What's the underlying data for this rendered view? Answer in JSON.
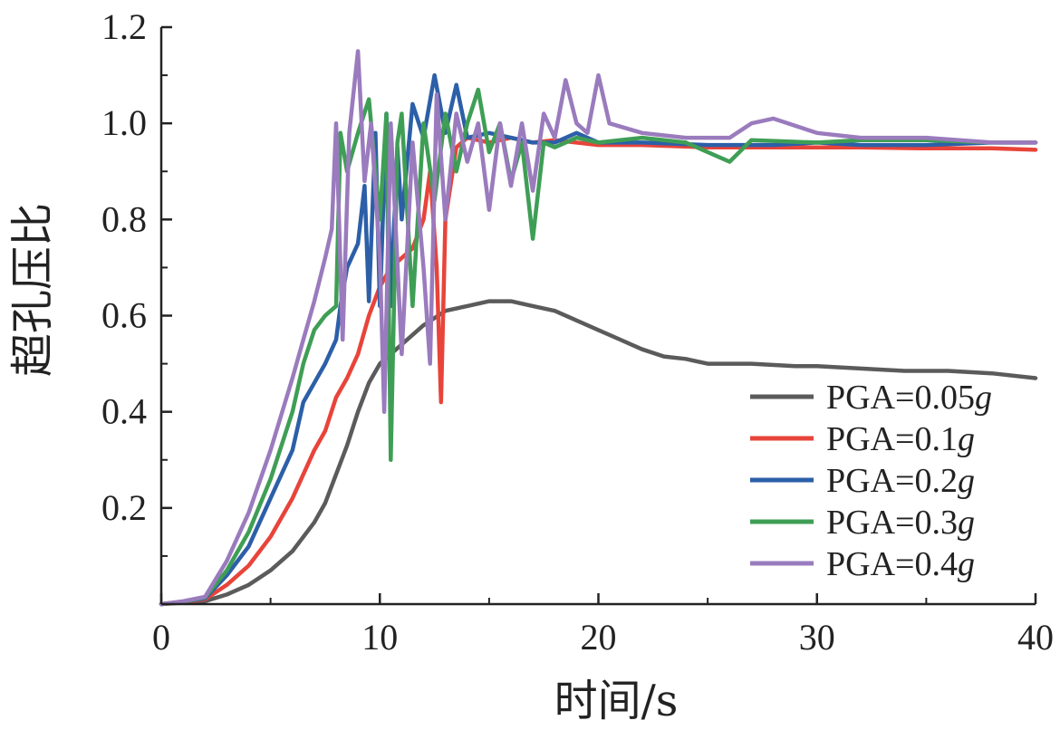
{
  "chart_data": {
    "type": "line",
    "title": "",
    "xlabel": "时间/s",
    "ylabel": "超孔压比",
    "xlim": [
      0,
      40
    ],
    "ylim": [
      0,
      1.2
    ],
    "xticks": [
      0,
      10,
      20,
      30,
      40
    ],
    "xtick_labels": [
      "0",
      "10",
      "20",
      "30",
      "40"
    ],
    "yticks": [
      0.2,
      0.4,
      0.6,
      0.8,
      1.0,
      1.2
    ],
    "ytick_labels": [
      "0.2",
      "0.4",
      "0.6",
      "0.8",
      "1.0",
      "1.2"
    ],
    "legend_position": "bottom-right",
    "series": [
      {
        "name": "PGA=0.05",
        "unit": "g",
        "color": "#5b5b5b",
        "points": [
          [
            0,
            0
          ],
          [
            1,
            0.003
          ],
          [
            2,
            0.006
          ],
          [
            3,
            0.02
          ],
          [
            4,
            0.04
          ],
          [
            5,
            0.07
          ],
          [
            6,
            0.11
          ],
          [
            7,
            0.17
          ],
          [
            7.5,
            0.21
          ],
          [
            8,
            0.27
          ],
          [
            8.5,
            0.33
          ],
          [
            9,
            0.4
          ],
          [
            9.5,
            0.46
          ],
          [
            10,
            0.5
          ],
          [
            11,
            0.54
          ],
          [
            12,
            0.58
          ],
          [
            13,
            0.61
          ],
          [
            14,
            0.62
          ],
          [
            15,
            0.63
          ],
          [
            16,
            0.63
          ],
          [
            17,
            0.62
          ],
          [
            18,
            0.61
          ],
          [
            19,
            0.59
          ],
          [
            20,
            0.57
          ],
          [
            21,
            0.55
          ],
          [
            22,
            0.53
          ],
          [
            23,
            0.515
          ],
          [
            24,
            0.51
          ],
          [
            25,
            0.5
          ],
          [
            27,
            0.5
          ],
          [
            29,
            0.495
          ],
          [
            30,
            0.495
          ],
          [
            32,
            0.49
          ],
          [
            34,
            0.485
          ],
          [
            36,
            0.485
          ],
          [
            38,
            0.48
          ],
          [
            40,
            0.47
          ]
        ]
      },
      {
        "name": "PGA=0.1",
        "unit": "g",
        "color": "#e8443a",
        "points": [
          [
            0,
            0
          ],
          [
            1,
            0.004
          ],
          [
            2,
            0.01
          ],
          [
            3,
            0.04
          ],
          [
            4,
            0.08
          ],
          [
            5,
            0.14
          ],
          [
            6,
            0.22
          ],
          [
            7,
            0.32
          ],
          [
            7.5,
            0.36
          ],
          [
            8,
            0.43
          ],
          [
            8.5,
            0.47
          ],
          [
            9,
            0.52
          ],
          [
            9.5,
            0.6
          ],
          [
            10,
            0.66
          ],
          [
            10.5,
            0.7
          ],
          [
            11,
            0.72
          ],
          [
            11.5,
            0.74
          ],
          [
            12,
            0.8
          ],
          [
            12.3,
            0.9
          ],
          [
            12.6,
            0.7
          ],
          [
            12.8,
            0.42
          ],
          [
            13,
            0.8
          ],
          [
            13.5,
            0.95
          ],
          [
            14,
            0.97
          ],
          [
            15,
            0.96
          ],
          [
            16,
            0.97
          ],
          [
            17,
            0.96
          ],
          [
            18,
            0.965
          ],
          [
            20,
            0.955
          ],
          [
            22,
            0.955
          ],
          [
            25,
            0.95
          ],
          [
            28,
            0.95
          ],
          [
            30,
            0.95
          ],
          [
            32,
            0.95
          ],
          [
            35,
            0.948
          ],
          [
            38,
            0.948
          ],
          [
            40,
            0.945
          ]
        ]
      },
      {
        "name": "PGA=0.2",
        "unit": "g",
        "color": "#2c5fa8",
        "points": [
          [
            0,
            0
          ],
          [
            1,
            0.005
          ],
          [
            2,
            0.012
          ],
          [
            3,
            0.06
          ],
          [
            4,
            0.12
          ],
          [
            5,
            0.22
          ],
          [
            6,
            0.32
          ],
          [
            6.5,
            0.42
          ],
          [
            7,
            0.46
          ],
          [
            7.5,
            0.5
          ],
          [
            8,
            0.55
          ],
          [
            8.2,
            0.62
          ],
          [
            8.5,
            0.7
          ],
          [
            9,
            0.75
          ],
          [
            9.3,
            0.87
          ],
          [
            9.5,
            0.63
          ],
          [
            9.8,
            0.98
          ],
          [
            10,
            0.62
          ],
          [
            10.3,
            1.02
          ],
          [
            10.5,
            0.62
          ],
          [
            10.8,
            0.95
          ],
          [
            11,
            0.8
          ],
          [
            11.5,
            1.04
          ],
          [
            12,
            0.97
          ],
          [
            12.5,
            1.1
          ],
          [
            13,
            0.98
          ],
          [
            13.5,
            1.08
          ],
          [
            14,
            0.97
          ],
          [
            15,
            0.98
          ],
          [
            16,
            0.97
          ],
          [
            17,
            0.96
          ],
          [
            18,
            0.96
          ],
          [
            19,
            0.98
          ],
          [
            20,
            0.96
          ],
          [
            22,
            0.96
          ],
          [
            25,
            0.955
          ],
          [
            28,
            0.955
          ],
          [
            30,
            0.96
          ],
          [
            32,
            0.955
          ],
          [
            35,
            0.955
          ],
          [
            38,
            0.96
          ],
          [
            40,
            0.96
          ]
        ]
      },
      {
        "name": "PGA=0.3",
        "unit": "g",
        "color": "#3f9e55",
        "points": [
          [
            0,
            0
          ],
          [
            1,
            0.005
          ],
          [
            2,
            0.014
          ],
          [
            3,
            0.07
          ],
          [
            4,
            0.15
          ],
          [
            5,
            0.26
          ],
          [
            6,
            0.4
          ],
          [
            6.5,
            0.5
          ],
          [
            7,
            0.57
          ],
          [
            7.5,
            0.6
          ],
          [
            8,
            0.62
          ],
          [
            8.2,
            0.98
          ],
          [
            8.5,
            0.9
          ],
          [
            9,
            0.98
          ],
          [
            9.5,
            1.05
          ],
          [
            10,
            0.8
          ],
          [
            10.3,
            1.02
          ],
          [
            10.5,
            0.3
          ],
          [
            10.8,
            0.96
          ],
          [
            11,
            1.02
          ],
          [
            11.5,
            0.62
          ],
          [
            12,
            1.0
          ],
          [
            12.5,
            0.84
          ],
          [
            13,
            1.02
          ],
          [
            13.5,
            0.9
          ],
          [
            14,
            1.0
          ],
          [
            14.5,
            1.07
          ],
          [
            15,
            0.94
          ],
          [
            15.5,
            1.0
          ],
          [
            16,
            0.88
          ],
          [
            16.5,
            0.96
          ],
          [
            17,
            0.76
          ],
          [
            17.5,
            0.96
          ],
          [
            18,
            0.95
          ],
          [
            19,
            0.97
          ],
          [
            20,
            0.96
          ],
          [
            22,
            0.97
          ],
          [
            24,
            0.96
          ],
          [
            26,
            0.92
          ],
          [
            27,
            0.965
          ],
          [
            30,
            0.96
          ],
          [
            32,
            0.965
          ],
          [
            35,
            0.965
          ],
          [
            38,
            0.96
          ],
          [
            40,
            0.96
          ]
        ]
      },
      {
        "name": "PGA=0.4",
        "unit": "g",
        "color": "#9a7bbd",
        "points": [
          [
            0,
            0
          ],
          [
            1,
            0.006
          ],
          [
            2,
            0.015
          ],
          [
            3,
            0.09
          ],
          [
            4,
            0.19
          ],
          [
            5,
            0.32
          ],
          [
            6,
            0.47
          ],
          [
            6.5,
            0.55
          ],
          [
            7,
            0.63
          ],
          [
            7.5,
            0.72
          ],
          [
            7.8,
            0.78
          ],
          [
            8,
            1.0
          ],
          [
            8.3,
            0.55
          ],
          [
            8.6,
            0.98
          ],
          [
            9,
            1.15
          ],
          [
            9.3,
            0.88
          ],
          [
            9.6,
            1.0
          ],
          [
            10,
            0.72
          ],
          [
            10.2,
            0.4
          ],
          [
            10.5,
            1.0
          ],
          [
            11,
            0.52
          ],
          [
            11.5,
            0.96
          ],
          [
            12,
            0.7
          ],
          [
            12.3,
            0.5
          ],
          [
            12.6,
            1.06
          ],
          [
            13,
            0.8
          ],
          [
            13.5,
            1.02
          ],
          [
            14,
            0.92
          ],
          [
            14.5,
            1.0
          ],
          [
            15,
            0.82
          ],
          [
            15.5,
            1.0
          ],
          [
            16,
            0.87
          ],
          [
            16.5,
            1.0
          ],
          [
            17,
            0.86
          ],
          [
            17.5,
            1.02
          ],
          [
            18,
            0.97
          ],
          [
            18.5,
            1.09
          ],
          [
            19,
            1.0
          ],
          [
            19.5,
            0.98
          ],
          [
            20,
            1.1
          ],
          [
            20.5,
            1.0
          ],
          [
            22,
            0.98
          ],
          [
            24,
            0.97
          ],
          [
            26,
            0.97
          ],
          [
            27,
            1.0
          ],
          [
            28,
            1.01
          ],
          [
            30,
            0.98
          ],
          [
            32,
            0.97
          ],
          [
            35,
            0.97
          ],
          [
            38,
            0.96
          ],
          [
            40,
            0.96
          ]
        ]
      }
    ]
  }
}
